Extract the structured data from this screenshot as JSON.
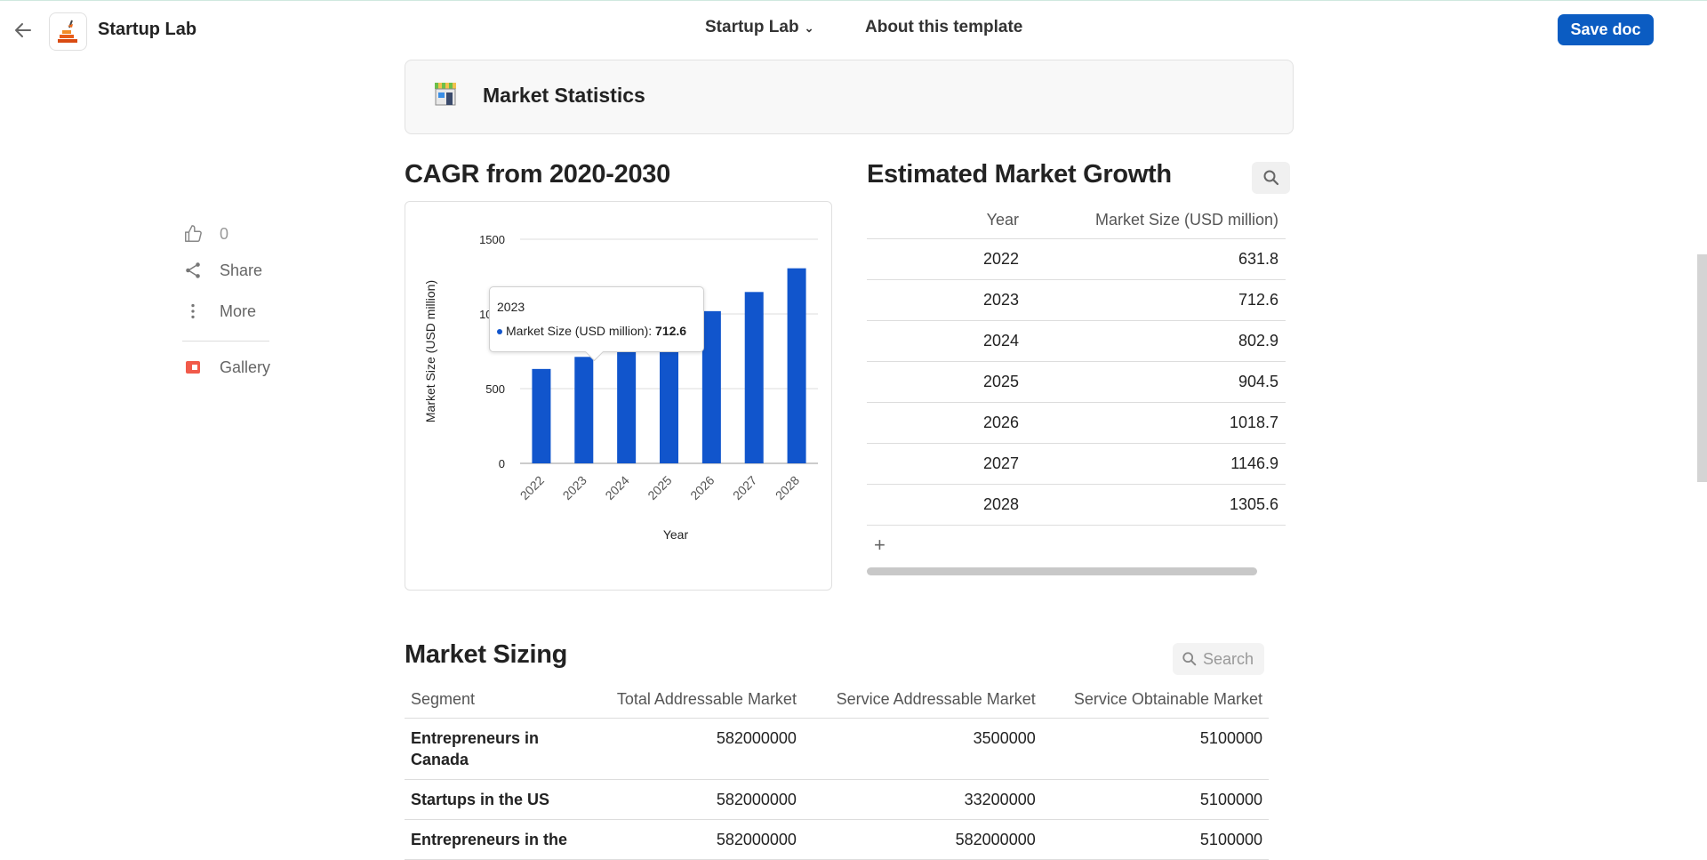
{
  "app": {
    "title": "Startup Lab"
  },
  "nav": {
    "doc_label": "Startup Lab",
    "about_label": "About this template"
  },
  "toolbar": {
    "save_label": "Save doc"
  },
  "rail": {
    "like_count": "0",
    "share_label": "Share",
    "more_label": "More",
    "gallery_label": "Gallery"
  },
  "header": {
    "title": "Market Statistics",
    "icon": "storefront-icon"
  },
  "cagr": {
    "heading": "CAGR from 2020-2030"
  },
  "chart_data": {
    "type": "bar",
    "categories": [
      "2022",
      "2023",
      "2024",
      "2025",
      "2026",
      "2027",
      "2028"
    ],
    "series": [
      {
        "name": "Market Size (USD million)",
        "values": [
          631.8,
          712.6,
          802.9,
          904.5,
          1018.7,
          1146.9,
          1305.6
        ]
      }
    ],
    "xlabel": "Year",
    "ylabel": "Market Size (USD million)",
    "ylim": [
      0,
      1500
    ],
    "yticks": [
      "0",
      "500",
      "1000",
      "1500"
    ],
    "color": "#1155cc",
    "grid": true,
    "tooltip": {
      "title": "2023",
      "label": "Market Size (USD million): ",
      "value": "712.6"
    }
  },
  "growth": {
    "heading": "Estimated Market Growth",
    "columns": [
      "Year",
      "Market Size (USD million)"
    ],
    "rows": [
      [
        "2022",
        "631.8"
      ],
      [
        "2023",
        "712.6"
      ],
      [
        "2024",
        "802.9"
      ],
      [
        "2025",
        "904.5"
      ],
      [
        "2026",
        "1018.7"
      ],
      [
        "2027",
        "1146.9"
      ],
      [
        "2028",
        "1305.6"
      ]
    ],
    "add_label": "+"
  },
  "sizing": {
    "heading": "Market Sizing",
    "search_placeholder": "Search",
    "columns": [
      "Segment",
      "Total Addressable Market",
      "Service Addressable Market",
      "Service Obtainable Market"
    ],
    "rows": [
      [
        "Entrepreneurs in Canada",
        "582000000",
        "3500000",
        "5100000"
      ],
      [
        "Startups in the US",
        "582000000",
        "33200000",
        "5100000"
      ],
      [
        "Entrepreneurs in the",
        "582000000",
        "582000000",
        "5100000"
      ]
    ]
  }
}
